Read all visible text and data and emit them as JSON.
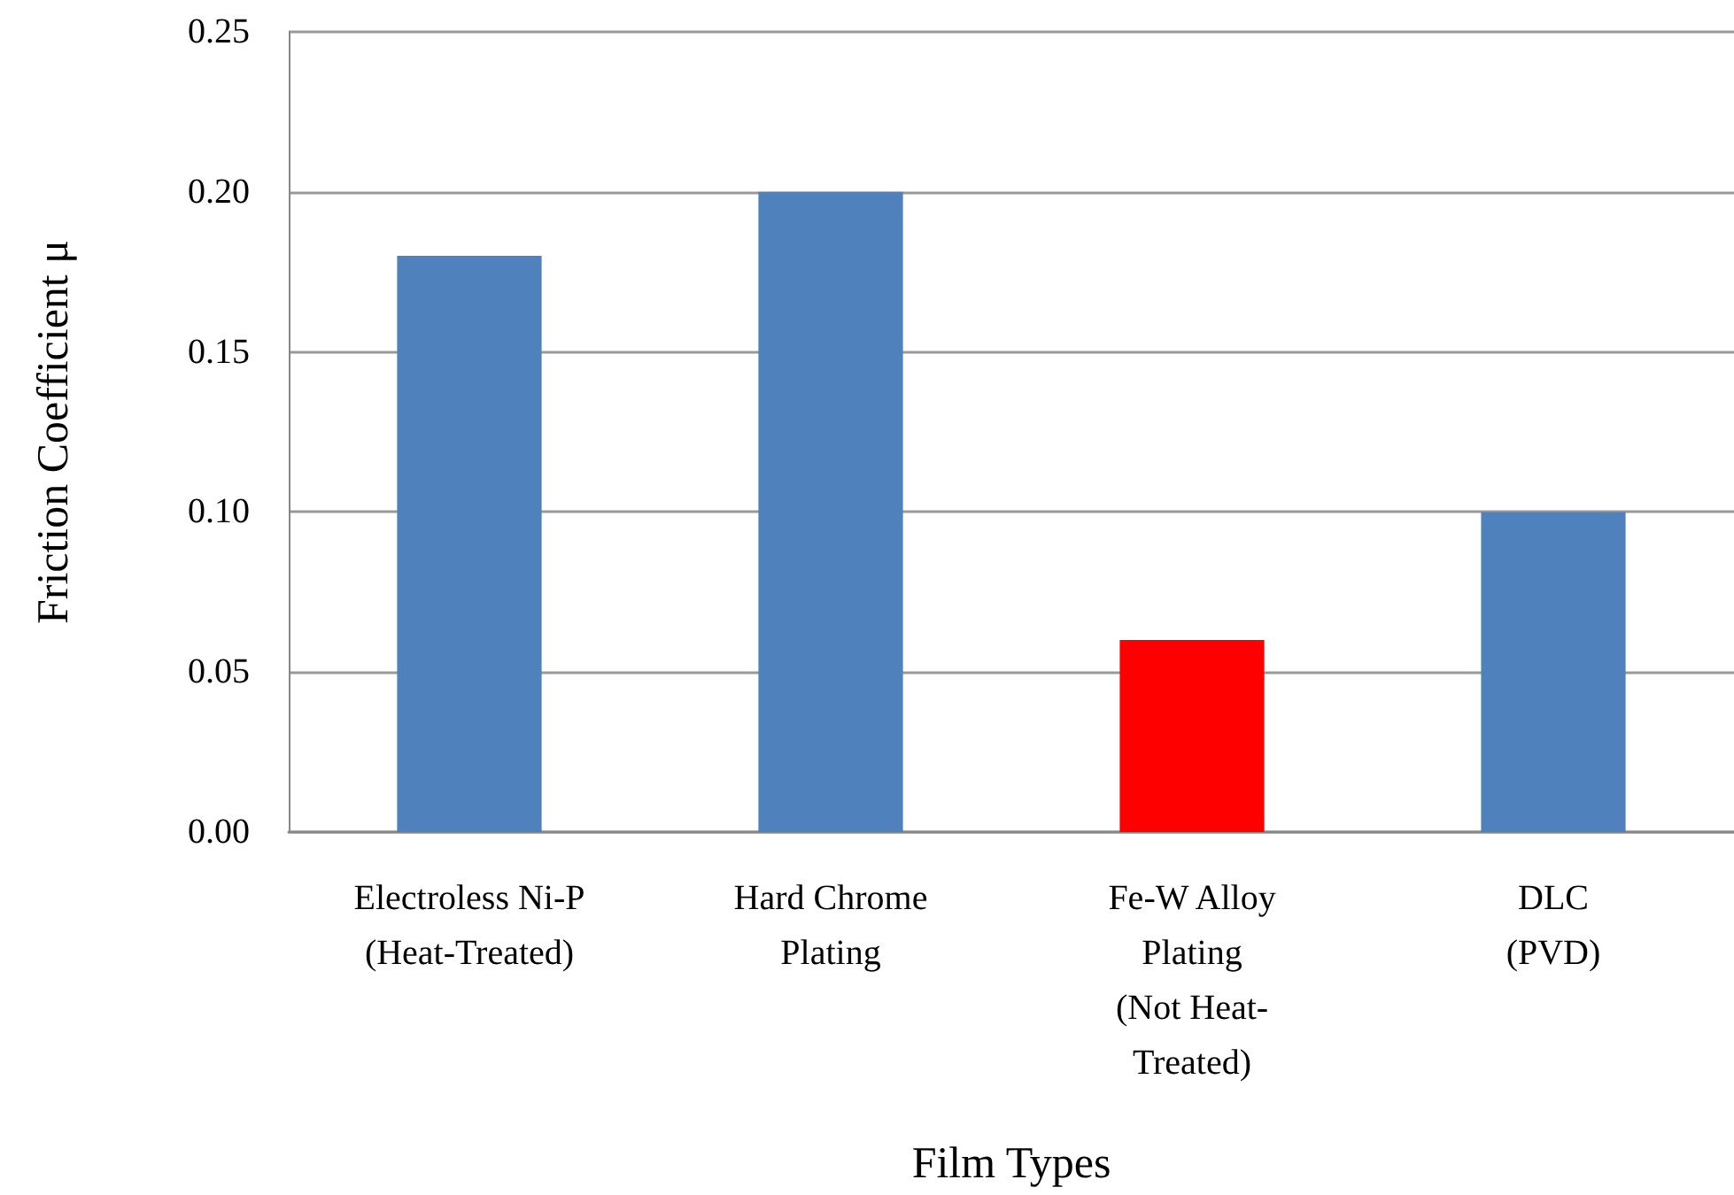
{
  "chart_data": {
    "type": "bar",
    "xlabel": "Film Types",
    "ylabel": "Friction Coefficient μ",
    "categories": [
      "Electroless Ni-P\n(Heat-Treated)",
      "Hard Chrome\nPlating",
      "Fe-W Alloy\nPlating\n(Not Heat-\nTreated)",
      "DLC\n(PVD)"
    ],
    "values": [
      0.18,
      0.2,
      0.06,
      0.1
    ],
    "colors": [
      "#4f81bd",
      "#4f81bd",
      "#ff0000",
      "#4f81bd"
    ],
    "ylim": [
      0,
      0.25
    ],
    "yticks": [
      {
        "value": 0,
        "label": "0.00"
      },
      {
        "value": 0.05,
        "label": "0.05"
      },
      {
        "value": 0.1,
        "label": "0.10"
      },
      {
        "value": 0.15,
        "label": "0.15"
      },
      {
        "value": 0.2,
        "label": "0.20"
      },
      {
        "value": 0.25,
        "label": "0.25"
      }
    ],
    "grid": "y"
  }
}
